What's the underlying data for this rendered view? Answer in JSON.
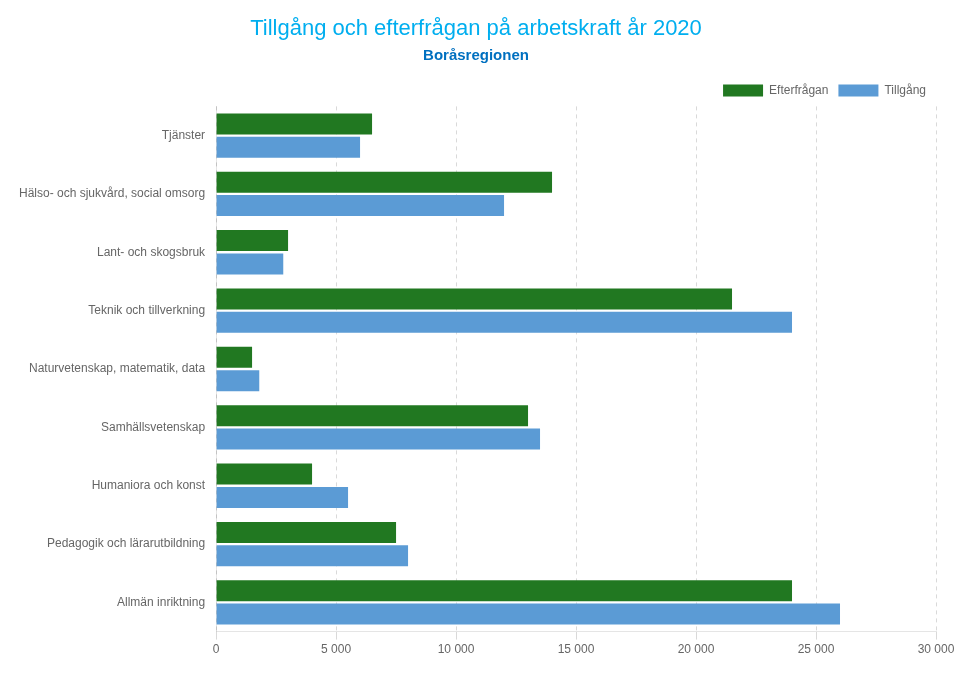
{
  "chart_data": {
    "type": "bar",
    "orientation": "horizontal",
    "title": "Tillgång och efterfrågan på arbetskraft år 2020",
    "subtitle": "Boråsregionen",
    "title_color": "#00AEEF",
    "subtitle_color": "#0070C0",
    "categories": [
      "Tjänster",
      "Hälso- och sjukvård, social omsorg",
      "Lant- och skogsbruk",
      "Teknik och tillverkning",
      "Naturvetenskap, matematik, data",
      "Samhällsvetenskap",
      "Humaniora och konst",
      "Pedagogik och lärarutbildning",
      "Allmän inriktning"
    ],
    "series": [
      {
        "name": "Efterfrågan",
        "color": "#217821",
        "values": [
          6500,
          14000,
          3000,
          21500,
          1500,
          13000,
          4000,
          7500,
          24000
        ]
      },
      {
        "name": "Tillgång",
        "color": "#5B9BD5",
        "values": [
          6000,
          12000,
          2800,
          24000,
          1800,
          13500,
          5500,
          8000,
          26000
        ]
      }
    ],
    "xlim": [
      0,
      30000
    ],
    "xticks": [
      0,
      {
        "value": 5000,
        "label": "5 000"
      },
      {
        "value": 10000,
        "label": "10 000"
      },
      {
        "value": 15000,
        "label": "15 000"
      },
      {
        "value": 20000,
        "label": "20 000"
      },
      {
        "value": 25000,
        "label": "25 000"
      },
      {
        "value": 30000,
        "label": "30 000"
      }
    ],
    "grid": true,
    "legend": "upper right"
  }
}
